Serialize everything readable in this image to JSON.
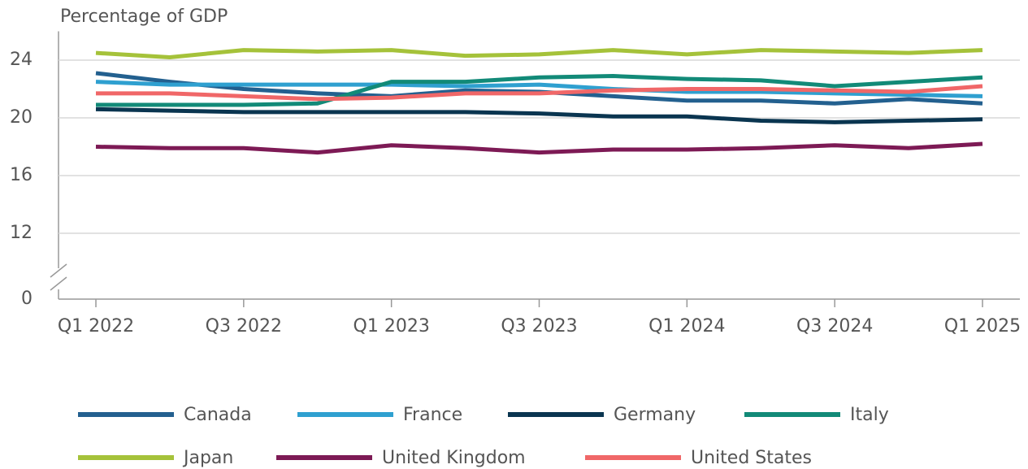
{
  "chart_data": {
    "type": "line",
    "y_label": "Percentage of GDP",
    "categories": [
      "Q1 2022",
      null,
      "Q3 2022",
      null,
      "Q1 2023",
      null,
      "Q3 2023",
      null,
      "Q1 2024",
      null,
      "Q3 2024",
      null,
      "Q1 2025"
    ],
    "series": [
      {
        "name": "Canada",
        "color": "#23608f",
        "values": [
          23.1,
          22.5,
          22.0,
          21.7,
          21.5,
          21.9,
          21.8,
          21.5,
          21.2,
          21.2,
          21.0,
          21.3,
          21.0
        ]
      },
      {
        "name": "France",
        "color": "#2fa0d0",
        "values": [
          22.5,
          22.3,
          22.3,
          22.3,
          22.3,
          22.2,
          22.3,
          22.0,
          21.8,
          21.8,
          21.7,
          21.6,
          21.5
        ]
      },
      {
        "name": "Germany",
        "color": "#0a3550",
        "values": [
          20.6,
          20.5,
          20.4,
          20.4,
          20.4,
          20.4,
          20.3,
          20.1,
          20.1,
          19.8,
          19.7,
          19.8,
          19.9
        ]
      },
      {
        "name": "Italy",
        "color": "#128a78",
        "values": [
          20.9,
          20.9,
          20.9,
          21.0,
          22.5,
          22.5,
          22.8,
          22.9,
          22.7,
          22.6,
          22.2,
          22.5,
          22.8
        ]
      },
      {
        "name": "Japan",
        "color": "#a5c23a",
        "values": [
          24.5,
          24.2,
          24.7,
          24.6,
          24.7,
          24.3,
          24.4,
          24.7,
          24.4,
          24.7,
          24.6,
          24.5,
          24.7
        ]
      },
      {
        "name": "United Kingdom",
        "color": "#7d1a55",
        "values": [
          18.0,
          17.9,
          17.9,
          17.6,
          18.1,
          17.9,
          17.6,
          17.8,
          17.8,
          17.9,
          18.1,
          17.9,
          18.2
        ]
      },
      {
        "name": "United States",
        "color": "#f06768",
        "values": [
          21.7,
          21.7,
          21.5,
          21.3,
          21.4,
          21.7,
          21.7,
          21.9,
          22.0,
          22.0,
          21.9,
          21.8,
          22.2
        ]
      }
    ],
    "ylim": [
      0,
      26
    ],
    "yticks": [
      0,
      12,
      16,
      20,
      24
    ],
    "y_break": [
      0,
      12
    ],
    "grid": true
  }
}
